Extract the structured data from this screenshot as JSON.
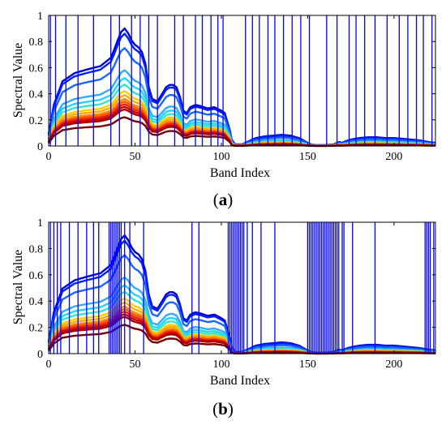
{
  "figure": {
    "panels": [
      {
        "caption_open": "(",
        "caption_letter": "a",
        "caption_close": ")"
      },
      {
        "caption_open": "(",
        "caption_letter": "b",
        "caption_close": ")"
      }
    ]
  },
  "chart_data": [
    {
      "type": "line",
      "panel": "a",
      "xlabel": "Band Index",
      "ylabel": "Spectral Value",
      "xlim": [
        0,
        224
      ],
      "ylim": [
        0,
        1
      ],
      "xticks": [
        0,
        50,
        100,
        150,
        200
      ],
      "yticks": [
        0,
        0.2,
        0.4,
        0.6,
        0.8,
        1
      ],
      "grid": false,
      "legend": "none",
      "band_marker_color": "#0000ff",
      "selected_bands": [
        1,
        4,
        10,
        17,
        26,
        36,
        41,
        48,
        53,
        58,
        63,
        73,
        78,
        85,
        89,
        94,
        98,
        101,
        114,
        118,
        122,
        127,
        131,
        136,
        141,
        146,
        151,
        161,
        167,
        174,
        178,
        183,
        189,
        196,
        203,
        208,
        213,
        217,
        222
      ],
      "series_colors": [
        "#0000cc",
        "#0022ff",
        "#1a66ff",
        "#33aaff",
        "#22d4ff",
        "#33e6cc",
        "#ffcc00",
        "#ffaa00",
        "#ff8800",
        "#ff5500",
        "#ee2200",
        "#cc0000",
        "#aa0000",
        "#770000"
      ],
      "profile_x": [
        0,
        3,
        8,
        15,
        22,
        30,
        36,
        38,
        40,
        42,
        44,
        46,
        48,
        50,
        52,
        54,
        56,
        58,
        60,
        63,
        66,
        68,
        70,
        72,
        74,
        76,
        78,
        80,
        82,
        85,
        88,
        92,
        96,
        100,
        102,
        104,
        106,
        108,
        112,
        116,
        120,
        125,
        130,
        135,
        140,
        145,
        150,
        152,
        155,
        160,
        165,
        168,
        170,
        172,
        175,
        180,
        185,
        190,
        195,
        200,
        205,
        210,
        215,
        220,
        224
      ],
      "profile_shape": [
        0.1,
        0.35,
        0.55,
        0.62,
        0.65,
        0.68,
        0.75,
        0.82,
        0.9,
        0.97,
        1.0,
        0.96,
        0.9,
        0.86,
        0.84,
        0.8,
        0.7,
        0.5,
        0.4,
        0.38,
        0.45,
        0.5,
        0.52,
        0.52,
        0.5,
        0.42,
        0.3,
        0.28,
        0.33,
        0.35,
        0.34,
        0.32,
        0.33,
        0.3,
        0.28,
        0.18,
        0.08,
        0.02,
        0.02,
        0.06,
        0.1,
        0.12,
        0.13,
        0.14,
        0.13,
        0.1,
        0.04,
        0.02,
        0.01,
        0.01,
        0.02,
        0.05,
        0.04,
        0.06,
        0.08,
        0.1,
        0.11,
        0.11,
        0.1,
        0.1,
        0.09,
        0.08,
        0.07,
        0.05,
        0.04
      ],
      "series_peak": [
        0.9,
        0.86,
        0.75,
        0.58,
        0.52,
        0.47,
        0.42,
        0.39,
        0.36,
        0.34,
        0.32,
        0.3,
        0.28,
        0.22
      ]
    },
    {
      "type": "line",
      "panel": "b",
      "xlabel": "Band Index",
      "ylabel": "Spectral Value",
      "xlim": [
        0,
        224
      ],
      "ylim": [
        0,
        1
      ],
      "xticks": [
        0,
        50,
        100,
        150,
        200
      ],
      "yticks": [
        0,
        0.2,
        0.4,
        0.6,
        0.8,
        1
      ],
      "grid": false,
      "legend": "none",
      "band_marker_color": "#0000ff",
      "selected_bands": [
        1,
        3,
        5,
        7,
        12,
        17,
        22,
        26,
        29,
        35,
        36,
        37,
        38,
        39,
        40,
        41,
        42,
        44,
        47,
        55,
        83,
        87,
        104,
        105,
        106,
        107,
        108,
        109,
        110,
        111,
        112,
        113,
        115,
        118,
        123,
        131,
        150,
        151,
        152,
        153,
        154,
        155,
        156,
        157,
        158,
        159,
        160,
        161,
        162,
        163,
        164,
        165,
        166,
        167,
        168,
        170,
        171,
        176,
        189,
        218,
        219,
        220,
        221,
        223
      ],
      "series_colors": [
        "#0000cc",
        "#0022ff",
        "#1a66ff",
        "#33aaff",
        "#22d4ff",
        "#33e6cc",
        "#ffcc00",
        "#ffaa00",
        "#ff8800",
        "#ff5500",
        "#ee2200",
        "#cc0000",
        "#aa0000",
        "#770000"
      ],
      "profile_x": [
        0,
        3,
        8,
        15,
        22,
        30,
        36,
        38,
        40,
        42,
        44,
        46,
        48,
        50,
        52,
        54,
        56,
        58,
        60,
        63,
        66,
        68,
        70,
        72,
        74,
        76,
        78,
        80,
        82,
        85,
        88,
        92,
        96,
        100,
        102,
        104,
        106,
        108,
        112,
        116,
        120,
        125,
        130,
        135,
        140,
        145,
        150,
        152,
        155,
        160,
        165,
        168,
        170,
        172,
        175,
        180,
        185,
        190,
        195,
        200,
        205,
        210,
        215,
        220,
        224
      ],
      "profile_shape": [
        0.1,
        0.35,
        0.55,
        0.62,
        0.65,
        0.68,
        0.75,
        0.82,
        0.9,
        0.97,
        1.0,
        0.96,
        0.9,
        0.86,
        0.84,
        0.8,
        0.7,
        0.5,
        0.4,
        0.38,
        0.45,
        0.5,
        0.52,
        0.52,
        0.5,
        0.42,
        0.3,
        0.28,
        0.33,
        0.35,
        0.34,
        0.32,
        0.33,
        0.3,
        0.28,
        0.18,
        0.08,
        0.02,
        0.02,
        0.06,
        0.1,
        0.12,
        0.13,
        0.14,
        0.13,
        0.1,
        0.04,
        0.02,
        0.01,
        0.01,
        0.02,
        0.05,
        0.04,
        0.06,
        0.08,
        0.1,
        0.11,
        0.11,
        0.1,
        0.1,
        0.09,
        0.08,
        0.07,
        0.05,
        0.04
      ],
      "series_peak": [
        0.9,
        0.86,
        0.75,
        0.58,
        0.52,
        0.47,
        0.42,
        0.39,
        0.36,
        0.34,
        0.32,
        0.3,
        0.28,
        0.22
      ]
    }
  ]
}
